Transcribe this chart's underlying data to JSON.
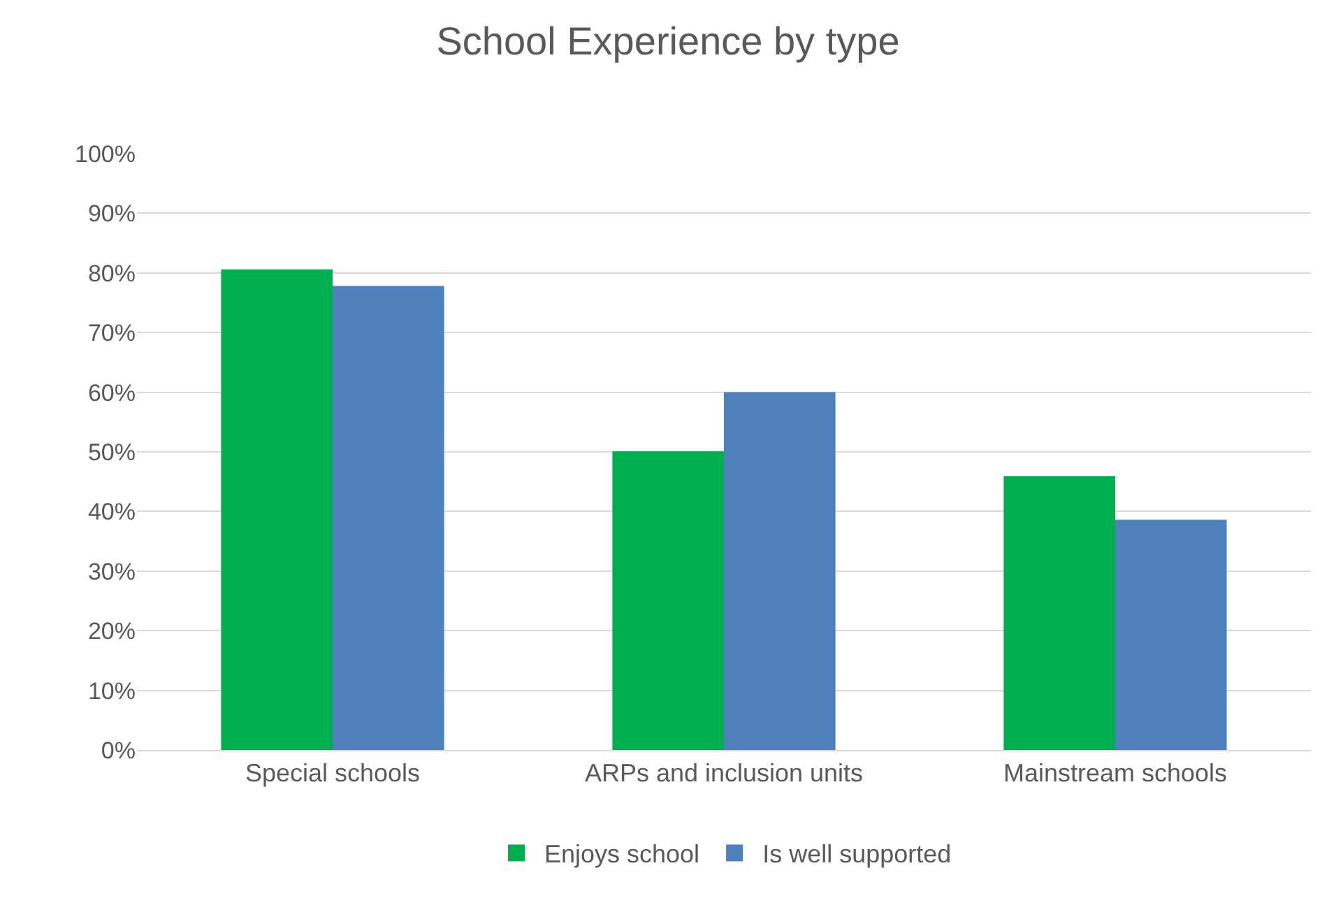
{
  "chart_data": {
    "type": "bar",
    "title": "School Experience by type",
    "categories": [
      "Special schools",
      "ARPs and inclusion units",
      "Mainstream schools"
    ],
    "series": [
      {
        "name": "Enjoys school",
        "color": "#00b050",
        "values": [
          80.6,
          50.1,
          45.9
        ]
      },
      {
        "name": "Is well supported",
        "color": "#4f81bd",
        "values": [
          77.8,
          60.0,
          38.6
        ]
      }
    ],
    "ylim": [
      0,
      100
    ],
    "yticks": [
      {
        "value": 0,
        "label": "0%"
      },
      {
        "value": 10,
        "label": "10%"
      },
      {
        "value": 20,
        "label": "20%"
      },
      {
        "value": 30,
        "label": "30%"
      },
      {
        "value": 40,
        "label": "40%"
      },
      {
        "value": 50,
        "label": "50%"
      },
      {
        "value": 60,
        "label": "60%"
      },
      {
        "value": 70,
        "label": "70%"
      },
      {
        "value": 80,
        "label": "80%"
      },
      {
        "value": 90,
        "label": "90%"
      },
      {
        "value": 100,
        "label": "100%"
      }
    ],
    "grid": "y",
    "legend": "bottom"
  }
}
